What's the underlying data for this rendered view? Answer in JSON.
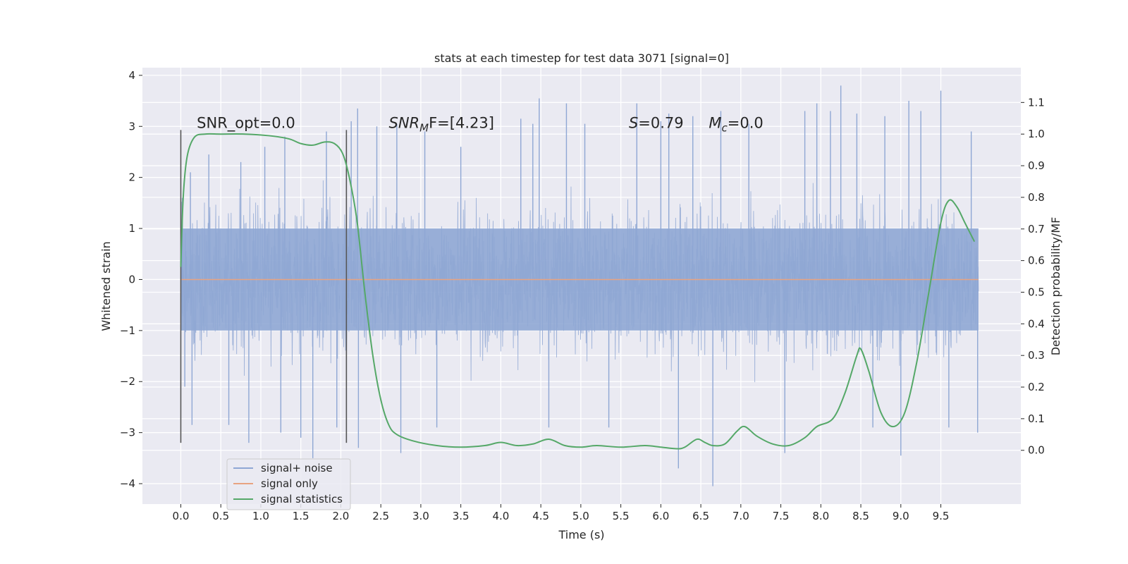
{
  "chart_data": {
    "type": "line",
    "title": "stats at each timestep for test data 3071 [signal=0]",
    "xlabel": "Time (s)",
    "ylabel": "Whitened strain",
    "y2label": "Detection probability/MF",
    "xlim": [
      -0.48,
      10.5
    ],
    "ylim": [
      -4.4,
      4.15
    ],
    "y2lim": [
      -0.17,
      1.21
    ],
    "xticks": [
      0.0,
      0.5,
      1.0,
      1.5,
      2.0,
      2.5,
      3.0,
      3.5,
      4.0,
      4.5,
      5.0,
      5.5,
      6.0,
      6.5,
      7.0,
      7.5,
      8.0,
      8.5,
      9.0,
      9.5
    ],
    "xtick_labels": [
      "0.0",
      "0.5",
      "1.0",
      "1.5",
      "2.0",
      "2.5",
      "3.0",
      "3.5",
      "4.0",
      "4.5",
      "5.0",
      "5.5",
      "6.0",
      "6.5",
      "7.0",
      "7.5",
      "8.0",
      "8.5",
      "9.0",
      "9.5"
    ],
    "yticks": [
      -4,
      -3,
      -2,
      -1,
      0,
      1,
      2,
      3,
      4
    ],
    "ytick_labels": [
      "−4",
      "−3",
      "−2",
      "−1",
      "0",
      "1",
      "2",
      "3",
      "4"
    ],
    "y2ticks": [
      0.0,
      0.1,
      0.2,
      0.3,
      0.4,
      0.5,
      0.6,
      0.7,
      0.8,
      0.9,
      1.0,
      1.1
    ],
    "y2tick_labels": [
      "0.0",
      "0.1",
      "0.2",
      "0.3",
      "0.4",
      "0.5",
      "0.6",
      "0.7",
      "0.8",
      "0.9",
      "1.0",
      "1.1"
    ],
    "grid": true,
    "legend_position": "lower-left",
    "annotations": [
      {
        "label": "SNR_opt=0.0",
        "x": 0.2,
        "y": 2.97
      },
      {
        "label_main": "SNR",
        "label_sub": "M",
        "label_tail": "F=[4.23]",
        "x": 2.6,
        "y": 2.97
      },
      {
        "label_main": "S",
        "label_tail": "=0.79",
        "x": 5.6,
        "y": 2.97
      },
      {
        "label_main": "M",
        "label_sub": "c",
        "label_tail": "=0.0",
        "x": 6.6,
        "y": 2.97
      }
    ],
    "vlines": [
      {
        "x": 0.0,
        "y0": -3.2,
        "y1": 2.93
      },
      {
        "x": 2.07,
        "y0": -3.2,
        "y1": 2.93
      }
    ],
    "series": [
      {
        "name": "signal+ noise",
        "color": "#8fa7d4",
        "kind": "noise-band",
        "x_range": [
          0.0,
          9.97
        ],
        "core_band": [
          -1.0,
          1.0
        ],
        "typical_extremes": [
          -2.4,
          2.4
        ],
        "spikes": [
          {
            "x": 0.02,
            "y": 1.6
          },
          {
            "x": 0.05,
            "y": -2.1
          },
          {
            "x": 0.12,
            "y": 2.1
          },
          {
            "x": 0.14,
            "y": -2.85
          },
          {
            "x": 0.35,
            "y": 2.45
          },
          {
            "x": 0.6,
            "y": -2.85
          },
          {
            "x": 0.75,
            "y": 2.3
          },
          {
            "x": 0.85,
            "y": -3.2
          },
          {
            "x": 1.05,
            "y": 2.6
          },
          {
            "x": 1.25,
            "y": -3.0
          },
          {
            "x": 1.3,
            "y": 2.8
          },
          {
            "x": 1.5,
            "y": -3.1
          },
          {
            "x": 1.65,
            "y": -3.5
          },
          {
            "x": 1.82,
            "y": 2.9
          },
          {
            "x": 1.95,
            "y": -2.9
          },
          {
            "x": 2.13,
            "y": 3.1
          },
          {
            "x": 2.21,
            "y": 3.35
          },
          {
            "x": 2.22,
            "y": -3.3
          },
          {
            "x": 2.45,
            "y": 3.0
          },
          {
            "x": 2.7,
            "y": 3.05
          },
          {
            "x": 2.75,
            "y": -3.4
          },
          {
            "x": 3.05,
            "y": 2.9
          },
          {
            "x": 3.2,
            "y": -2.9
          },
          {
            "x": 3.5,
            "y": 2.6
          },
          {
            "x": 4.25,
            "y": 3.15
          },
          {
            "x": 4.4,
            "y": 3.05
          },
          {
            "x": 4.48,
            "y": 3.55
          },
          {
            "x": 4.6,
            "y": -2.9
          },
          {
            "x": 4.82,
            "y": 3.45
          },
          {
            "x": 5.05,
            "y": 3.05
          },
          {
            "x": 5.35,
            "y": -2.9
          },
          {
            "x": 5.7,
            "y": 3.45
          },
          {
            "x": 6.0,
            "y": 3.1
          },
          {
            "x": 6.1,
            "y": 3.25
          },
          {
            "x": 6.22,
            "y": -3.7
          },
          {
            "x": 6.4,
            "y": 3.2
          },
          {
            "x": 6.65,
            "y": -4.05
          },
          {
            "x": 6.75,
            "y": 3.3
          },
          {
            "x": 7.1,
            "y": 3.05
          },
          {
            "x": 7.55,
            "y": -3.4
          },
          {
            "x": 7.8,
            "y": 3.3
          },
          {
            "x": 7.95,
            "y": 3.45
          },
          {
            "x": 8.12,
            "y": 3.3
          },
          {
            "x": 8.25,
            "y": 3.8
          },
          {
            "x": 8.45,
            "y": 3.25
          },
          {
            "x": 8.65,
            "y": -2.9
          },
          {
            "x": 8.8,
            "y": 3.2
          },
          {
            "x": 9.0,
            "y": -3.45
          },
          {
            "x": 9.1,
            "y": 3.5
          },
          {
            "x": 9.25,
            "y": 3.3
          },
          {
            "x": 9.5,
            "y": 3.7
          },
          {
            "x": 9.6,
            "y": -2.9
          },
          {
            "x": 9.88,
            "y": 2.9
          },
          {
            "x": 9.96,
            "y": -3.0
          }
        ]
      },
      {
        "name": "signal only",
        "color": "#e8a381",
        "x": [
          0.0,
          9.97
        ],
        "y": [
          0.0,
          0.0
        ]
      },
      {
        "name": "signal statistics",
        "color": "#55a868",
        "axis": "right",
        "x": [
          0.0,
          0.03,
          0.08,
          0.17,
          0.3,
          0.5,
          0.8,
          1.1,
          1.35,
          1.5,
          1.65,
          1.8,
          1.92,
          2.02,
          2.1,
          2.2,
          2.3,
          2.4,
          2.5,
          2.6,
          2.7,
          2.9,
          3.2,
          3.5,
          3.8,
          4.0,
          4.2,
          4.4,
          4.6,
          4.8,
          5.0,
          5.2,
          5.5,
          5.8,
          6.0,
          6.2,
          6.3,
          6.45,
          6.55,
          6.65,
          6.8,
          6.95,
          7.05,
          7.2,
          7.4,
          7.6,
          7.8,
          7.95,
          8.15,
          8.3,
          8.45,
          8.5,
          8.6,
          8.75,
          8.9,
          9.05,
          9.2,
          9.35,
          9.5,
          9.6,
          9.7,
          9.8,
          9.92
        ],
        "y": [
          0.58,
          0.8,
          0.93,
          0.99,
          1.0,
          1.0,
          1.0,
          0.995,
          0.985,
          0.97,
          0.965,
          0.975,
          0.97,
          0.94,
          0.87,
          0.73,
          0.5,
          0.3,
          0.16,
          0.08,
          0.05,
          0.03,
          0.015,
          0.01,
          0.015,
          0.025,
          0.015,
          0.02,
          0.035,
          0.015,
          0.01,
          0.015,
          0.01,
          0.015,
          0.01,
          0.005,
          0.01,
          0.035,
          0.025,
          0.015,
          0.02,
          0.06,
          0.075,
          0.045,
          0.02,
          0.015,
          0.04,
          0.075,
          0.1,
          0.18,
          0.3,
          0.32,
          0.25,
          0.12,
          0.075,
          0.12,
          0.28,
          0.5,
          0.72,
          0.79,
          0.77,
          0.72,
          0.66
        ]
      }
    ]
  }
}
